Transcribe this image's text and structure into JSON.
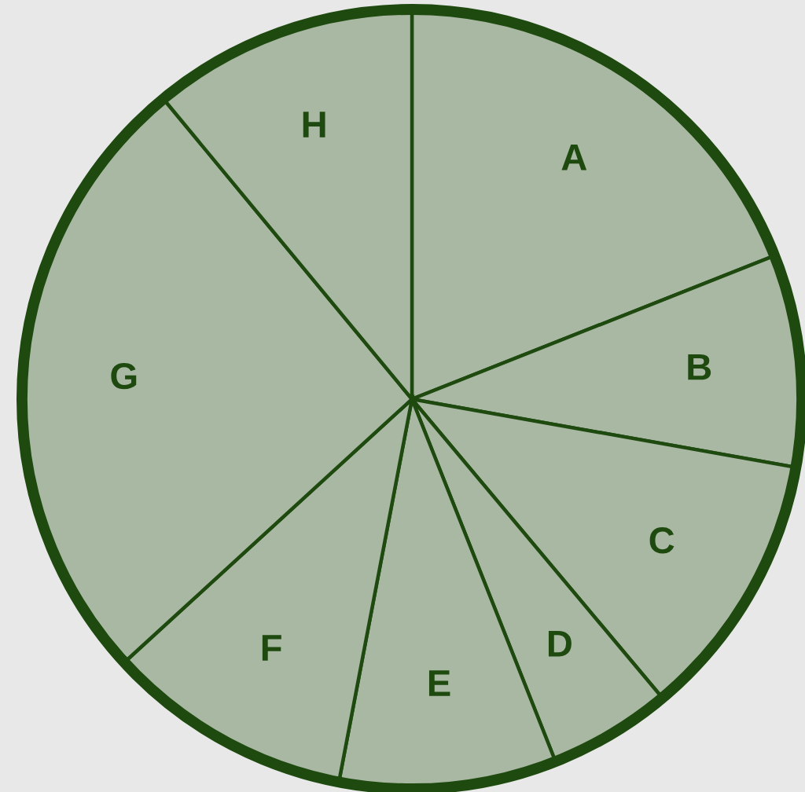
{
  "chart_data": {
    "type": "pie",
    "categories": [
      "A",
      "B",
      "C",
      "D",
      "E",
      "F",
      "G",
      "H"
    ],
    "values": [
      19.0,
      8.8,
      11.1,
      5.1,
      9.0,
      10.2,
      25.8,
      11.0
    ],
    "colors": [
      "#a9b8a3",
      "#a9b8a3",
      "#a9b8a3",
      "#a9b8a3",
      "#a9b8a3",
      "#a9b8a3",
      "#a9b8a3",
      "#a9b8a3"
    ]
  }
}
